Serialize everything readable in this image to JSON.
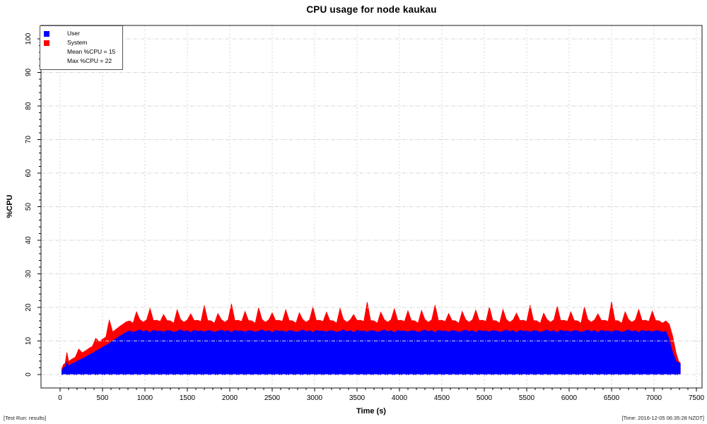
{
  "title": "CPU usage for node kaukau",
  "legend": {
    "items": [
      {
        "label": "User",
        "color": "#0000ff"
      },
      {
        "label": "System",
        "color": "#ff0000"
      }
    ],
    "notes": [
      "Mean %CPU = 15",
      "Max %CPU = 22"
    ]
  },
  "axes": {
    "x": {
      "title": "Time (s)",
      "tick_labels": [
        0,
        500,
        1000,
        1500,
        2000,
        2500,
        3000,
        3500,
        4000,
        4500,
        5000,
        5500,
        6000,
        6500,
        7000,
        7500
      ]
    },
    "y": {
      "title": "%CPU",
      "tick_labels": [
        0,
        10,
        20,
        30,
        40,
        50,
        60,
        70,
        80,
        90,
        100
      ]
    }
  },
  "footer": {
    "left": "[Test Run: results]",
    "right": "[Time: 2016-12-05 06:35:28 NZDT]"
  },
  "colors": {
    "user": "#0000ff",
    "system": "#ff0000",
    "grid": "#d7d7d7",
    "box": "#3c3c3c",
    "tick": "#000000"
  },
  "chart_data": {
    "type": "area",
    "stacked": true,
    "title": "CPU usage for node kaukau",
    "xlabel": "Time (s)",
    "ylabel": "%CPU",
    "xlim": [
      0,
      7500
    ],
    "ylim": [
      0,
      100
    ],
    "x_major_step": 500,
    "x_minor_step": 100,
    "y_major_step": 10,
    "y_minor_step": 2,
    "grid": true,
    "legend_position": "top-left",
    "mean_pct_cpu": 15,
    "max_pct_cpu": 22,
    "t": [
      20,
      40,
      60,
      80,
      100,
      140,
      180,
      220,
      260,
      300,
      340,
      380,
      420,
      460,
      500,
      540,
      580,
      620,
      660,
      700,
      740,
      780,
      820,
      860,
      900,
      940,
      980,
      1020,
      1060,
      1100,
      1140,
      1180,
      1220,
      1260,
      1300,
      1340,
      1380,
      1420,
      1460,
      1500,
      1540,
      1580,
      1620,
      1660,
      1700,
      1740,
      1780,
      1820,
      1860,
      1900,
      1940,
      1980,
      2020,
      2060,
      2100,
      2140,
      2180,
      2220,
      2260,
      2300,
      2340,
      2380,
      2420,
      2460,
      2500,
      2540,
      2580,
      2620,
      2660,
      2700,
      2740,
      2780,
      2820,
      2860,
      2900,
      2940,
      2980,
      3020,
      3060,
      3100,
      3140,
      3180,
      3220,
      3260,
      3300,
      3340,
      3380,
      3420,
      3460,
      3500,
      3540,
      3580,
      3620,
      3660,
      3700,
      3740,
      3780,
      3820,
      3860,
      3900,
      3940,
      3980,
      4020,
      4060,
      4100,
      4140,
      4180,
      4220,
      4260,
      4300,
      4340,
      4380,
      4420,
      4460,
      4500,
      4540,
      4580,
      4620,
      4660,
      4700,
      4740,
      4780,
      4820,
      4860,
      4900,
      4940,
      4980,
      5020,
      5060,
      5100,
      5140,
      5180,
      5220,
      5260,
      5300,
      5340,
      5380,
      5420,
      5460,
      5500,
      5540,
      5580,
      5620,
      5660,
      5700,
      5740,
      5780,
      5820,
      5860,
      5900,
      5940,
      5980,
      6020,
      6060,
      6100,
      6140,
      6180,
      6220,
      6260,
      6300,
      6340,
      6380,
      6420,
      6460,
      6500,
      6540,
      6580,
      6620,
      6660,
      6700,
      6740,
      6780,
      6820,
      6860,
      6900,
      6940,
      6980,
      7020,
      7060,
      7100,
      7140,
      7180,
      7220,
      7260,
      7290,
      7310
    ],
    "series": [
      {
        "name": "User",
        "color": "#0000ff",
        "values": [
          1.2,
          2.0,
          2.3,
          3.6,
          2.6,
          3.2,
          3.7,
          4.2,
          4.7,
          5.2,
          5.8,
          6.3,
          6.9,
          7.5,
          8.1,
          8.7,
          9.3,
          10.0,
          10.7,
          11.4,
          12.0,
          12.6,
          13.0,
          12.6,
          12.9,
          13.3,
          12.8,
          13.1,
          12.5,
          13.2,
          12.9,
          13.0,
          12.7,
          13.1,
          13.0,
          12.6,
          12.9,
          13.3,
          12.8,
          13.1,
          12.5,
          13.2,
          12.9,
          13.0,
          12.7,
          13.1,
          13.0,
          12.6,
          12.9,
          13.3,
          12.8,
          13.1,
          12.5,
          13.2,
          12.9,
          13.0,
          12.7,
          13.1,
          13.0,
          12.6,
          12.9,
          13.3,
          12.8,
          13.1,
          12.5,
          13.2,
          12.9,
          13.0,
          12.7,
          13.1,
          13.0,
          12.6,
          12.9,
          13.3,
          12.8,
          13.1,
          12.5,
          13.2,
          12.9,
          13.0,
          12.7,
          13.1,
          13.0,
          12.6,
          12.9,
          13.3,
          12.8,
          13.1,
          12.5,
          13.2,
          12.9,
          13.0,
          12.7,
          13.1,
          13.0,
          12.6,
          12.9,
          13.3,
          12.8,
          13.1,
          12.5,
          13.2,
          12.9,
          13.0,
          12.7,
          13.1,
          13.0,
          12.6,
          12.9,
          13.3,
          12.8,
          13.1,
          12.5,
          13.2,
          12.9,
          13.0,
          12.7,
          13.1,
          13.0,
          12.6,
          12.9,
          13.3,
          12.8,
          13.1,
          12.5,
          13.2,
          12.9,
          13.0,
          12.7,
          13.1,
          13.0,
          12.6,
          12.9,
          13.3,
          12.8,
          13.1,
          12.5,
          13.2,
          12.9,
          13.0,
          12.7,
          13.1,
          13.0,
          12.6,
          12.9,
          13.3,
          12.8,
          13.1,
          12.5,
          13.2,
          12.9,
          13.0,
          12.7,
          13.1,
          13.0,
          12.6,
          12.9,
          13.3,
          12.8,
          13.1,
          12.5,
          13.2,
          12.9,
          13.0,
          12.7,
          13.1,
          13.0,
          12.6,
          12.9,
          13.3,
          12.8,
          13.1,
          12.5,
          13.2,
          12.9,
          13.0,
          12.7,
          13.1,
          13.0,
          12.6,
          12.9,
          10.5,
          6.5,
          4.0,
          3.5,
          3.2
        ]
      },
      {
        "name": "System",
        "color": "#ff0000",
        "values": [
          0.6,
          1.0,
          1.1,
          3.0,
          1.3,
          1.4,
          1.5,
          3.4,
          1.8,
          1.9,
          2.0,
          2.1,
          3.9,
          2.3,
          2.4,
          2.5,
          7.0,
          2.7,
          2.8,
          2.9,
          3.0,
          3.1,
          3.0,
          2.7,
          5.8,
          3.1,
          2.8,
          3.2,
          7.2,
          2.9,
          3.3,
          2.8,
          5.2,
          3.0,
          3.0,
          2.7,
          6.4,
          3.1,
          2.8,
          3.2,
          5.6,
          2.9,
          3.3,
          2.8,
          7.9,
          3.0,
          3.0,
          2.7,
          5.3,
          3.1,
          2.8,
          3.2,
          8.6,
          2.9,
          3.3,
          2.8,
          6.1,
          3.0,
          3.0,
          2.7,
          7.0,
          3.1,
          2.8,
          3.2,
          5.9,
          2.9,
          3.3,
          2.8,
          6.6,
          3.0,
          3.0,
          2.7,
          5.5,
          3.1,
          2.8,
          3.2,
          7.6,
          2.9,
          3.3,
          2.8,
          5.9,
          3.0,
          3.0,
          2.7,
          6.8,
          3.1,
          2.8,
          3.2,
          5.4,
          2.9,
          3.3,
          2.8,
          8.9,
          3.0,
          3.0,
          2.7,
          5.7,
          3.1,
          2.8,
          3.2,
          7.1,
          2.9,
          3.3,
          2.8,
          6.3,
          3.0,
          3.0,
          2.7,
          6.2,
          3.1,
          2.8,
          3.2,
          8.2,
          2.9,
          3.3,
          2.8,
          5.5,
          3.0,
          3.0,
          2.7,
          5.9,
          3.1,
          2.8,
          3.2,
          6.7,
          2.9,
          3.3,
          2.8,
          7.4,
          3.0,
          3.0,
          2.7,
          6.5,
          3.1,
          2.8,
          3.2,
          5.8,
          2.9,
          3.3,
          2.8,
          8.0,
          3.0,
          3.0,
          2.7,
          5.4,
          3.1,
          2.8,
          3.2,
          7.8,
          2.9,
          3.3,
          2.8,
          6.0,
          3.0,
          3.0,
          2.7,
          7.3,
          3.1,
          2.8,
          3.2,
          5.6,
          2.9,
          3.3,
          2.8,
          9.0,
          3.0,
          3.0,
          2.7,
          5.8,
          3.1,
          2.8,
          3.2,
          6.9,
          2.9,
          3.3,
          2.8,
          6.2,
          3.0,
          3.0,
          2.7,
          3.1,
          4.5,
          5.0,
          2.5,
          0.5,
          0.3
        ]
      }
    ]
  }
}
